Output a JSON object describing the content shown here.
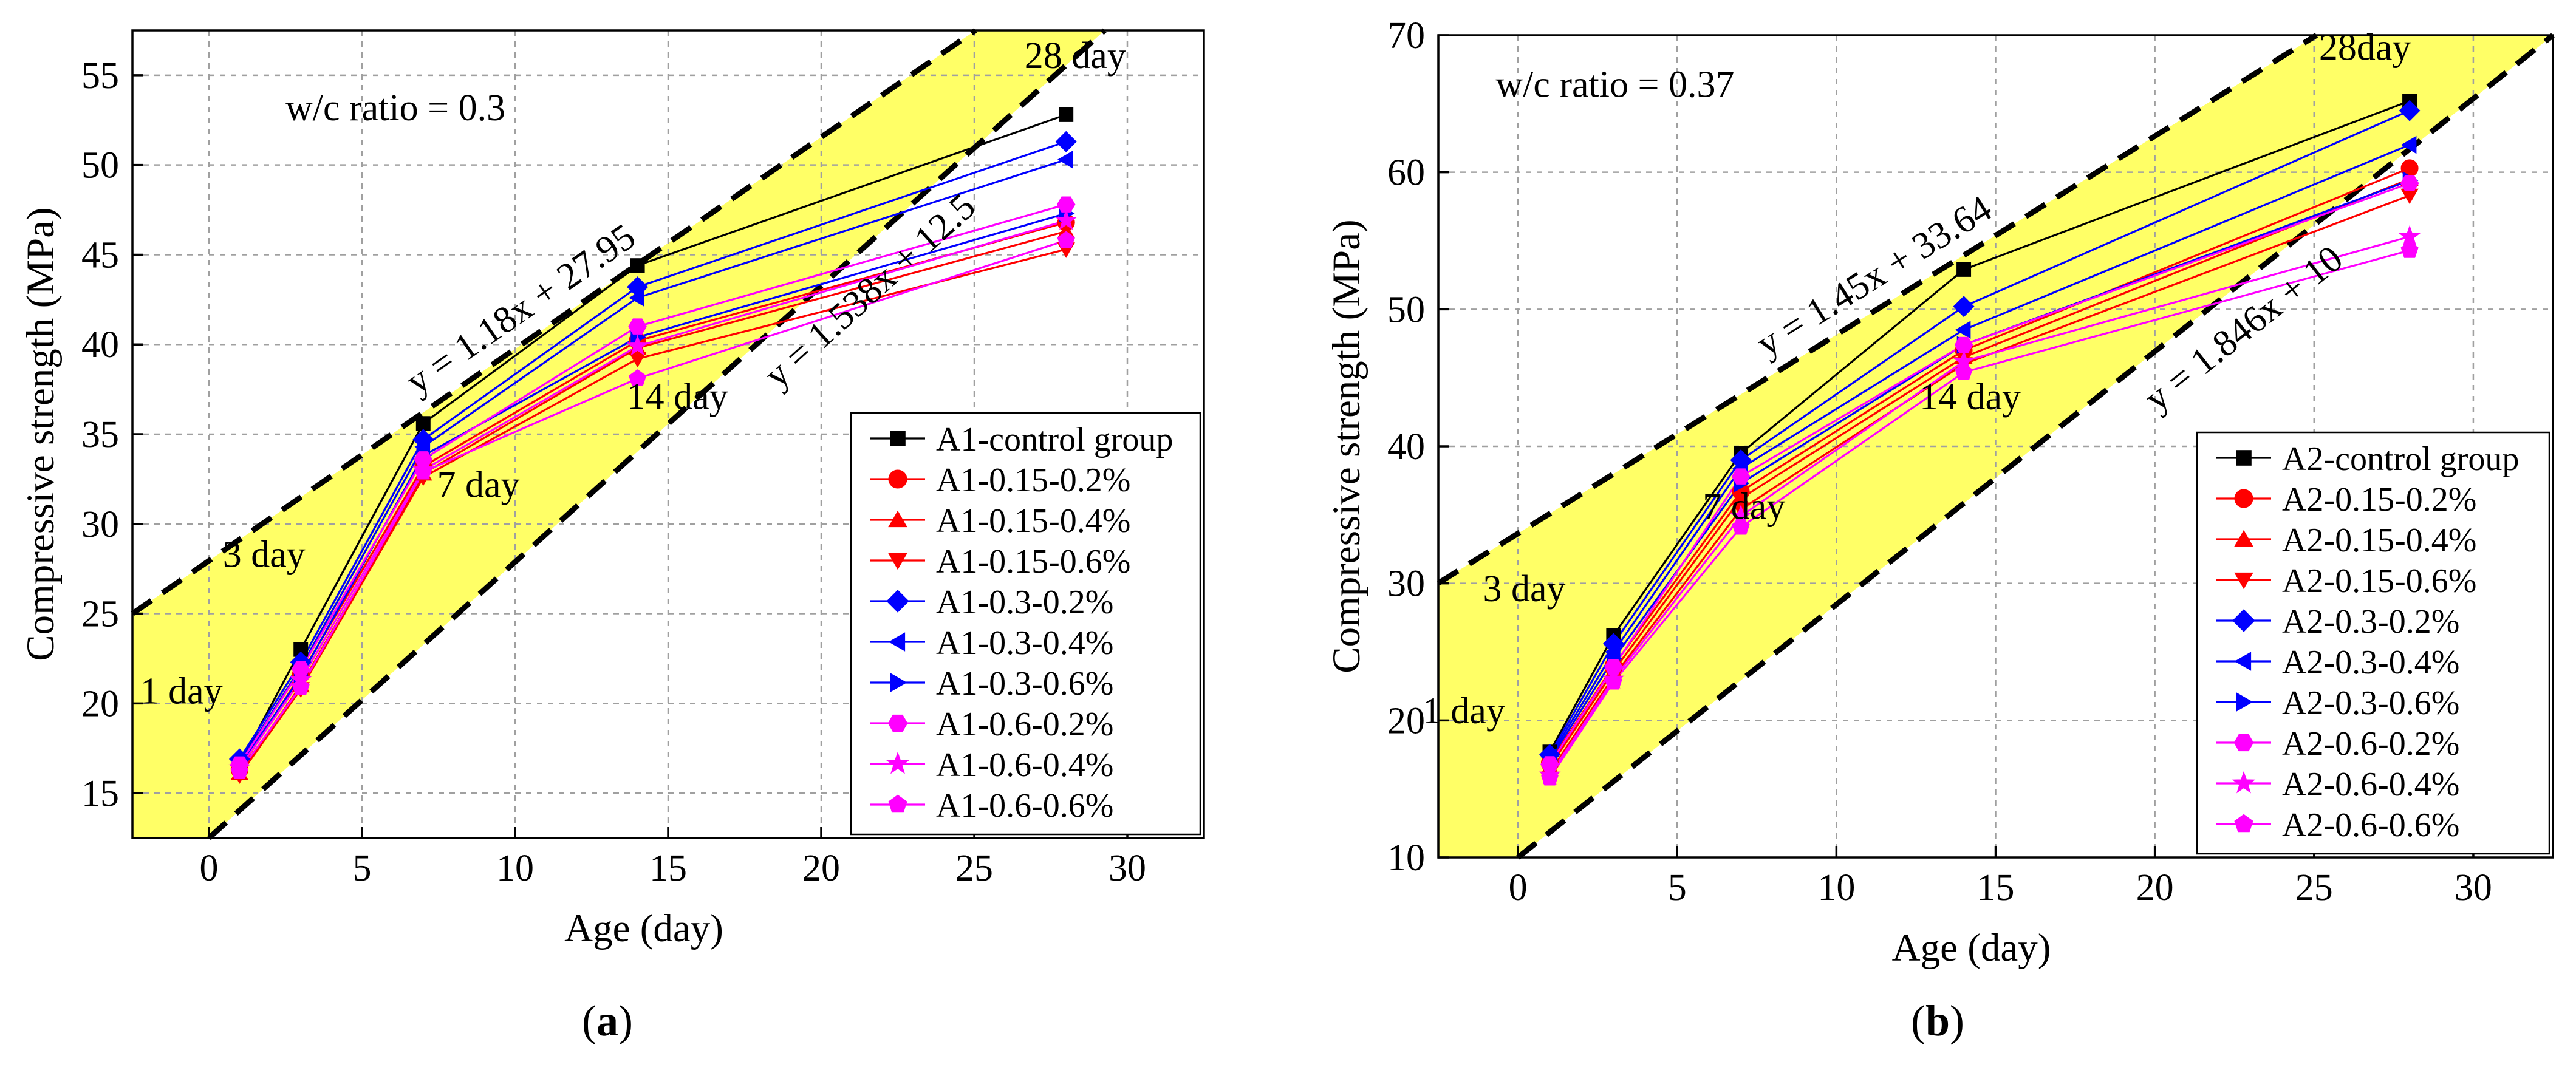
{
  "figure": {
    "panels": [
      {
        "caption_pre": "(",
        "caption_letter": "a",
        "caption_post": ")",
        "annotation_ratio": "w/c ratio = 0.3",
        "eq_upper": "y = 1.18x + 27.95",
        "eq_lower": "y = 1.538x + 12.5"
      },
      {
        "caption_pre": "(",
        "caption_letter": "b",
        "caption_post": ")",
        "annotation_ratio": "w/c ratio = 0.37",
        "eq_upper": "y = 1.45x + 33.64",
        "eq_lower": "y = 1.846x + 10"
      }
    ]
  },
  "chart_data": [
    {
      "type": "line",
      "title": "",
      "xlabel": "Age (day)",
      "ylabel": "Compressive strength (MPa)",
      "xlim": [
        -2.5,
        32.5
      ],
      "ylim": [
        12.5,
        57.5
      ],
      "xticks": [
        0,
        5,
        10,
        15,
        20,
        25,
        30
      ],
      "yticks": [
        15,
        20,
        25,
        30,
        35,
        40,
        45,
        50,
        55
      ],
      "grid": true,
      "legend_position": "lower-right",
      "x": [
        1,
        3,
        7,
        14,
        28
      ],
      "age_labels": [
        {
          "text": "1 day",
          "x": -0.9,
          "y": 20
        },
        {
          "text": "3 day",
          "x": 1.8,
          "y": 27.6
        },
        {
          "text": "7 day",
          "x": 8.8,
          "y": 31.5
        },
        {
          "text": "14 day",
          "x": 15.3,
          "y": 36.4
        },
        {
          "text": "28 day",
          "x": 28.3,
          "y": 55.4
        }
      ],
      "ratio_label_pos": {
        "x": 2.5,
        "y": 52.5
      },
      "bands": {
        "upper": {
          "slope": 1.18,
          "intercept": 27.95
        },
        "lower": {
          "slope": 1.538,
          "intercept": 12.5
        }
      },
      "series": [
        {
          "name": "A1-control group",
          "color": "#000000",
          "marker": "square",
          "values": [
            16.6,
            23.0,
            35.6,
            44.4,
            52.8
          ]
        },
        {
          "name": "A1-0.15-0.2%",
          "color": "#ff0000",
          "marker": "circle",
          "values": [
            16.3,
            21.6,
            33.2,
            40.2,
            46.8
          ]
        },
        {
          "name": "A1-0.15-0.4%",
          "color": "#ff0000",
          "marker": "triangle-up",
          "values": [
            16.1,
            21.0,
            32.8,
            39.8,
            46.3
          ]
        },
        {
          "name": "A1-0.15-0.6%",
          "color": "#ff0000",
          "marker": "triangle-down",
          "values": [
            16.0,
            20.8,
            32.6,
            39.2,
            45.3
          ]
        },
        {
          "name": "A1-0.3-0.2%",
          "color": "#0000ff",
          "marker": "diamond",
          "values": [
            16.9,
            22.3,
            34.7,
            43.2,
            51.3
          ]
        },
        {
          "name": "A1-0.3-0.4%",
          "color": "#0000ff",
          "marker": "triangle-left",
          "values": [
            16.7,
            22.0,
            34.3,
            42.6,
            50.3
          ]
        },
        {
          "name": "A1-0.3-0.6%",
          "color": "#0000ff",
          "marker": "triangle-right",
          "values": [
            16.5,
            21.5,
            33.8,
            40.4,
            47.3
          ]
        },
        {
          "name": "A1-0.6-0.2%",
          "color": "#ff00ff",
          "marker": "hexagon",
          "values": [
            16.6,
            21.9,
            33.6,
            41.0,
            47.8
          ]
        },
        {
          "name": "A1-0.6-0.4%",
          "color": "#ff00ff",
          "marker": "star",
          "values": [
            16.4,
            21.3,
            33.0,
            39.9,
            46.9
          ]
        },
        {
          "name": "A1-0.6-0.6%",
          "color": "#ff00ff",
          "marker": "pentagon",
          "values": [
            16.2,
            20.9,
            32.9,
            38.1,
            45.8
          ]
        }
      ]
    },
    {
      "type": "line",
      "title": "",
      "xlabel": "Age (day)",
      "ylabel": "Compressive strength (MPa)",
      "xlim": [
        -2.5,
        32.5
      ],
      "ylim": [
        10,
        70
      ],
      "xticks": [
        0,
        5,
        10,
        15,
        20,
        25,
        30
      ],
      "yticks": [
        10,
        20,
        30,
        40,
        50,
        60,
        70
      ],
      "grid": true,
      "legend_position": "lower-right",
      "x": [
        1,
        3,
        7,
        14,
        28
      ],
      "age_labels": [
        {
          "text": "1 day",
          "x": -1.7,
          "y": 19.8
        },
        {
          "text": "3 day",
          "x": 0.2,
          "y": 28.7
        },
        {
          "text": "7 day",
          "x": 7.1,
          "y": 34.7
        },
        {
          "text": "14 day",
          "x": 14.2,
          "y": 42.7
        },
        {
          "text": "28day",
          "x": 26.6,
          "y": 68.2
        }
      ],
      "ratio_label_pos": {
        "x": -0.7,
        "y": 65.5
      },
      "bands": {
        "upper": {
          "slope": 1.45,
          "intercept": 33.64
        },
        "lower": {
          "slope": 1.846,
          "intercept": 10
        }
      },
      "series": [
        {
          "name": "A2-control group",
          "color": "#000000",
          "marker": "square",
          "values": [
            17.7,
            26.2,
            39.5,
            52.9,
            65.2
          ]
        },
        {
          "name": "A2-0.15-0.2%",
          "color": "#ff0000",
          "marker": "circle",
          "values": [
            16.9,
            24.0,
            36.7,
            47.0,
            60.3
          ]
        },
        {
          "name": "A2-0.15-0.4%",
          "color": "#ff0000",
          "marker": "triangle-up",
          "values": [
            16.6,
            23.6,
            36.2,
            46.5,
            59.5
          ]
        },
        {
          "name": "A2-0.15-0.6%",
          "color": "#ff0000",
          "marker": "triangle-down",
          "values": [
            16.2,
            23.2,
            35.4,
            46.0,
            58.3
          ]
        },
        {
          "name": "A2-0.3-0.2%",
          "color": "#0000ff",
          "marker": "diamond",
          "values": [
            17.5,
            25.6,
            39.0,
            50.2,
            64.5
          ]
        },
        {
          "name": "A2-0.3-0.4%",
          "color": "#0000ff",
          "marker": "triangle-left",
          "values": [
            17.3,
            25.0,
            38.4,
            48.5,
            62.0
          ]
        },
        {
          "name": "A2-0.3-0.6%",
          "color": "#0000ff",
          "marker": "triangle-right",
          "values": [
            17.1,
            24.5,
            37.3,
            47.4,
            59.4
          ]
        },
        {
          "name": "A2-0.6-0.2%",
          "color": "#ff00ff",
          "marker": "hexagon",
          "values": [
            16.8,
            23.9,
            37.8,
            47.4,
            59.2
          ]
        },
        {
          "name": "A2-0.6-0.4%",
          "color": "#ff00ff",
          "marker": "star",
          "values": [
            16.0,
            23.0,
            34.9,
            46.2,
            55.3
          ]
        },
        {
          "name": "A2-0.6-0.6%",
          "color": "#ff00ff",
          "marker": "pentagon",
          "values": [
            15.8,
            22.8,
            34.1,
            45.4,
            54.3
          ]
        }
      ]
    }
  ]
}
